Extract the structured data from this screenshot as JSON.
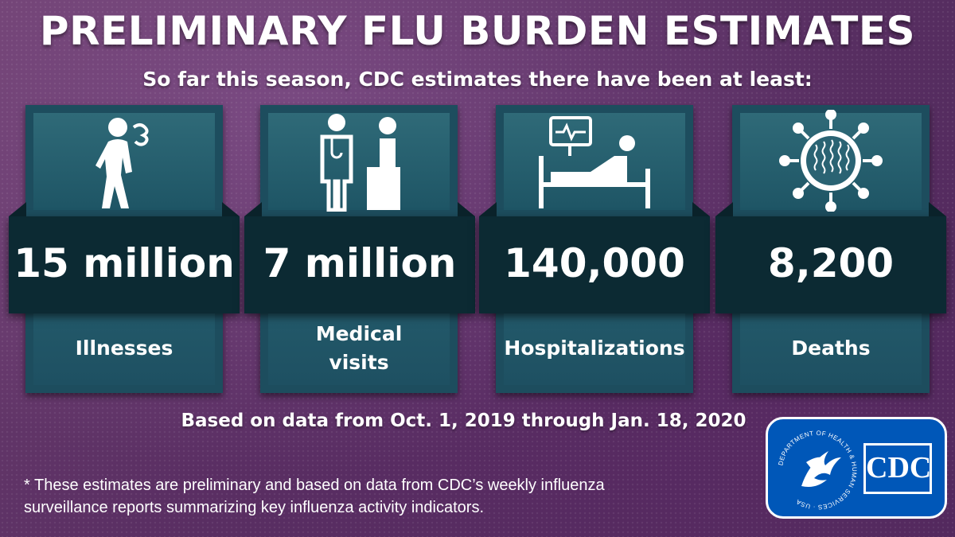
{
  "header": {
    "title": "PRELIMINARY FLU BURDEN ESTIMATES",
    "subtitle": "So far this season, CDC estimates there have been at least:"
  },
  "cards": [
    {
      "value": "15 million",
      "label_lines": [
        "Illnesses"
      ],
      "icon": "sick-person-icon"
    },
    {
      "value": "7 million",
      "label_lines": [
        "Medical",
        "visits"
      ],
      "icon": "doctor-patient-icon"
    },
    {
      "value": "140,000",
      "label_lines": [
        "Hospitalizations"
      ],
      "icon": "hospital-bed-icon"
    },
    {
      "value": "8,200",
      "label_lines": [
        "Deaths"
      ],
      "icon": "virus-icon"
    }
  ],
  "footer": {
    "date_range": "Based on data from Oct. 1, 2019 through Jan. 18, 2020",
    "disclaimer_line1": "* These estimates are preliminary and based on data from CDC’s weekly influenza",
    "disclaimer_line2": "surveillance reports summarizing key influenza activity indicators."
  },
  "logo": {
    "seal_text": "DEPARTMENT OF HEALTH & HUMAN SERVICES · USA",
    "text": "CDC",
    "icon": "hhs-eagle-icon"
  },
  "colors": {
    "background": "#5a2f63",
    "card": "#1d4d5e",
    "band": "#0c2a33",
    "logo_blue": "#0057b8"
  }
}
